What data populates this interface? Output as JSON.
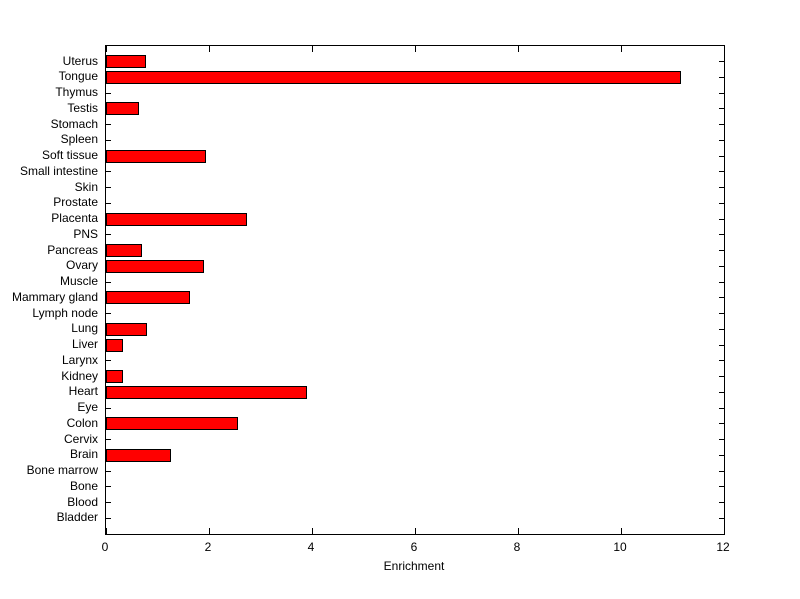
{
  "chart_data": {
    "type": "bar",
    "orientation": "horizontal",
    "title": "",
    "xlabel": "Enrichment",
    "ylabel": "",
    "xlim": [
      0,
      12
    ],
    "xticks": [
      0,
      2,
      4,
      6,
      8,
      10,
      12
    ],
    "grid": false,
    "legend": false,
    "bar_color": "#ff0000",
    "bar_edge_color": "#000000",
    "axis_color": "#000000",
    "background_color": "#ffffff",
    "categories": [
      "Uterus",
      "Tongue",
      "Thymus",
      "Testis",
      "Stomach",
      "Spleen",
      "Soft tissue",
      "Small intestine",
      "Skin",
      "Prostate",
      "Placenta",
      "PNS",
      "Pancreas",
      "Ovary",
      "Muscle",
      "Mammary gland",
      "Lymph node",
      "Lung",
      "Liver",
      "Larynx",
      "Kidney",
      "Heart",
      "Eye",
      "Colon",
      "Cervix",
      "Brain",
      "Bone marrow",
      "Bone",
      "Blood",
      "Bladder"
    ],
    "values": [
      0.77,
      11.17,
      0,
      0.65,
      0,
      0,
      1.95,
      0,
      0,
      0,
      2.73,
      0,
      0.7,
      1.91,
      0,
      1.63,
      0,
      0.79,
      0.33,
      0,
      0.33,
      3.9,
      0,
      2.57,
      0,
      1.26,
      0,
      0,
      0,
      0
    ]
  }
}
